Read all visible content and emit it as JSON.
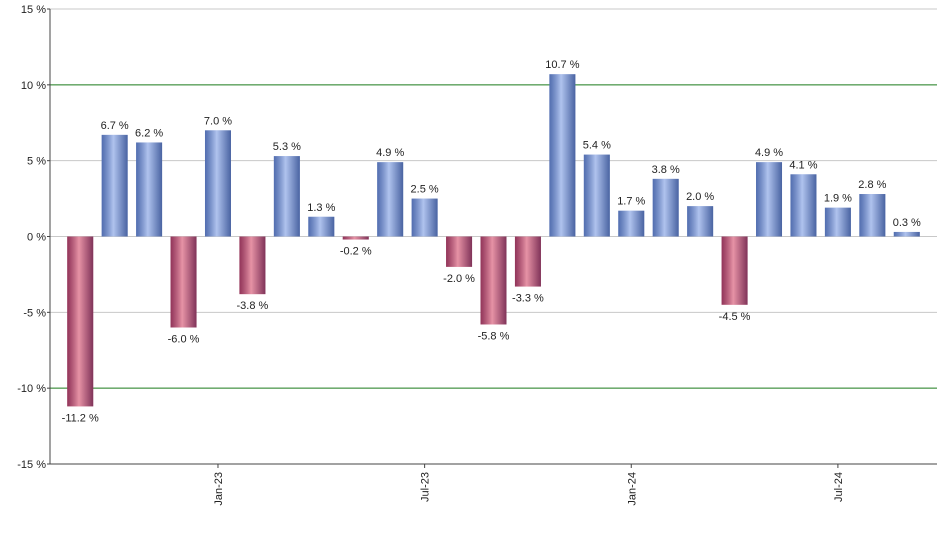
{
  "chart_data": {
    "type": "bar",
    "categories": [
      null,
      null,
      null,
      null,
      "Jan-23",
      null,
      null,
      null,
      null,
      null,
      "Jul-23",
      null,
      null,
      null,
      null,
      null,
      "Jan-24",
      null,
      null,
      null,
      null,
      null,
      "Jul-24",
      null,
      null
    ],
    "values": [
      -11.2,
      6.7,
      6.2,
      -6.0,
      7.0,
      -3.8,
      5.3,
      1.3,
      -0.2,
      4.9,
      2.5,
      -2.0,
      -5.8,
      -3.3,
      10.7,
      5.4,
      1.7,
      3.8,
      2.0,
      -4.5,
      4.9,
      4.1,
      1.9,
      2.8,
      0.3
    ],
    "value_labels": [
      "-11.2 %",
      "6.7 %",
      "6.2 %",
      "-6.0 %",
      "7.0 %",
      "-3.8 %",
      "5.3 %",
      "1.3 %",
      "-0.2 %",
      "4.9 %",
      "2.5 %",
      "-2.0 %",
      "-5.8 %",
      "-3.3 %",
      "10.7 %",
      "5.4 %",
      "1.7 %",
      "3.8 %",
      "2.0 %",
      "-4.5 %",
      "4.9 %",
      "4.1 %",
      "1.9 %",
      "2.8 %",
      "0.3 %"
    ],
    "positive_color": "#6f92e0",
    "negative_color": "#d23a5c",
    "ylim": [
      -15,
      15
    ],
    "yticks": [
      {
        "value": -15,
        "label": "-15 %"
      },
      {
        "value": -10,
        "label": "-10 %"
      },
      {
        "value": -5,
        "label": "-5 %"
      },
      {
        "value": 0,
        "label": "0 %"
      },
      {
        "value": 5,
        "label": "5 %"
      },
      {
        "value": 10,
        "label": "10 %"
      },
      {
        "value": 15,
        "label": "15 %"
      }
    ],
    "grid": true,
    "grid_color": "#c8c8c8",
    "reference_lines": [
      -10,
      10
    ],
    "reference_color": "#1a7a1a"
  }
}
